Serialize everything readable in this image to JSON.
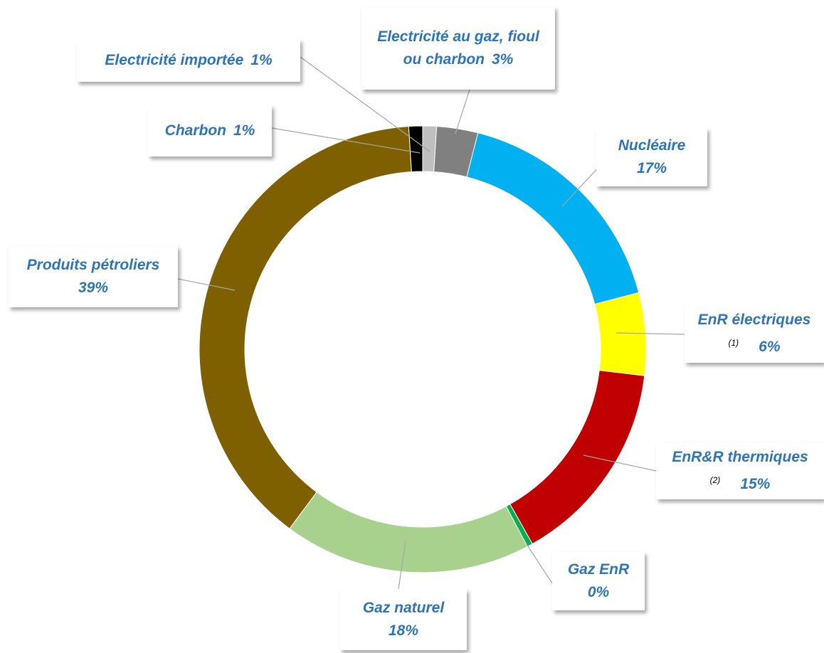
{
  "chart_data": {
    "type": "pie",
    "categories": [
      "Electricité importée",
      "Electricité au gaz, fioul ou charbon",
      "Nucléaire",
      "EnR électriques",
      "EnR&R thermiques",
      "Gaz EnR",
      "Gaz naturel",
      "Produits pétroliers",
      "Charbon"
    ],
    "values": [
      1,
      3,
      17,
      6,
      15,
      0.4,
      18,
      39,
      1
    ],
    "value_labels": [
      "1%",
      "3%",
      "17%",
      "6%",
      "15%",
      "0%",
      "18%",
      "39%",
      "1%"
    ],
    "notes": [
      null,
      null,
      null,
      "(1)",
      "(2)",
      null,
      null,
      null,
      null
    ],
    "colors": [
      "#bfbfbf",
      "#808080",
      "#00b0f0",
      "#ffff00",
      "#c00000",
      "#00b050",
      "#a9d18e",
      "#7f6000",
      "#000000"
    ],
    "donut": true
  }
}
